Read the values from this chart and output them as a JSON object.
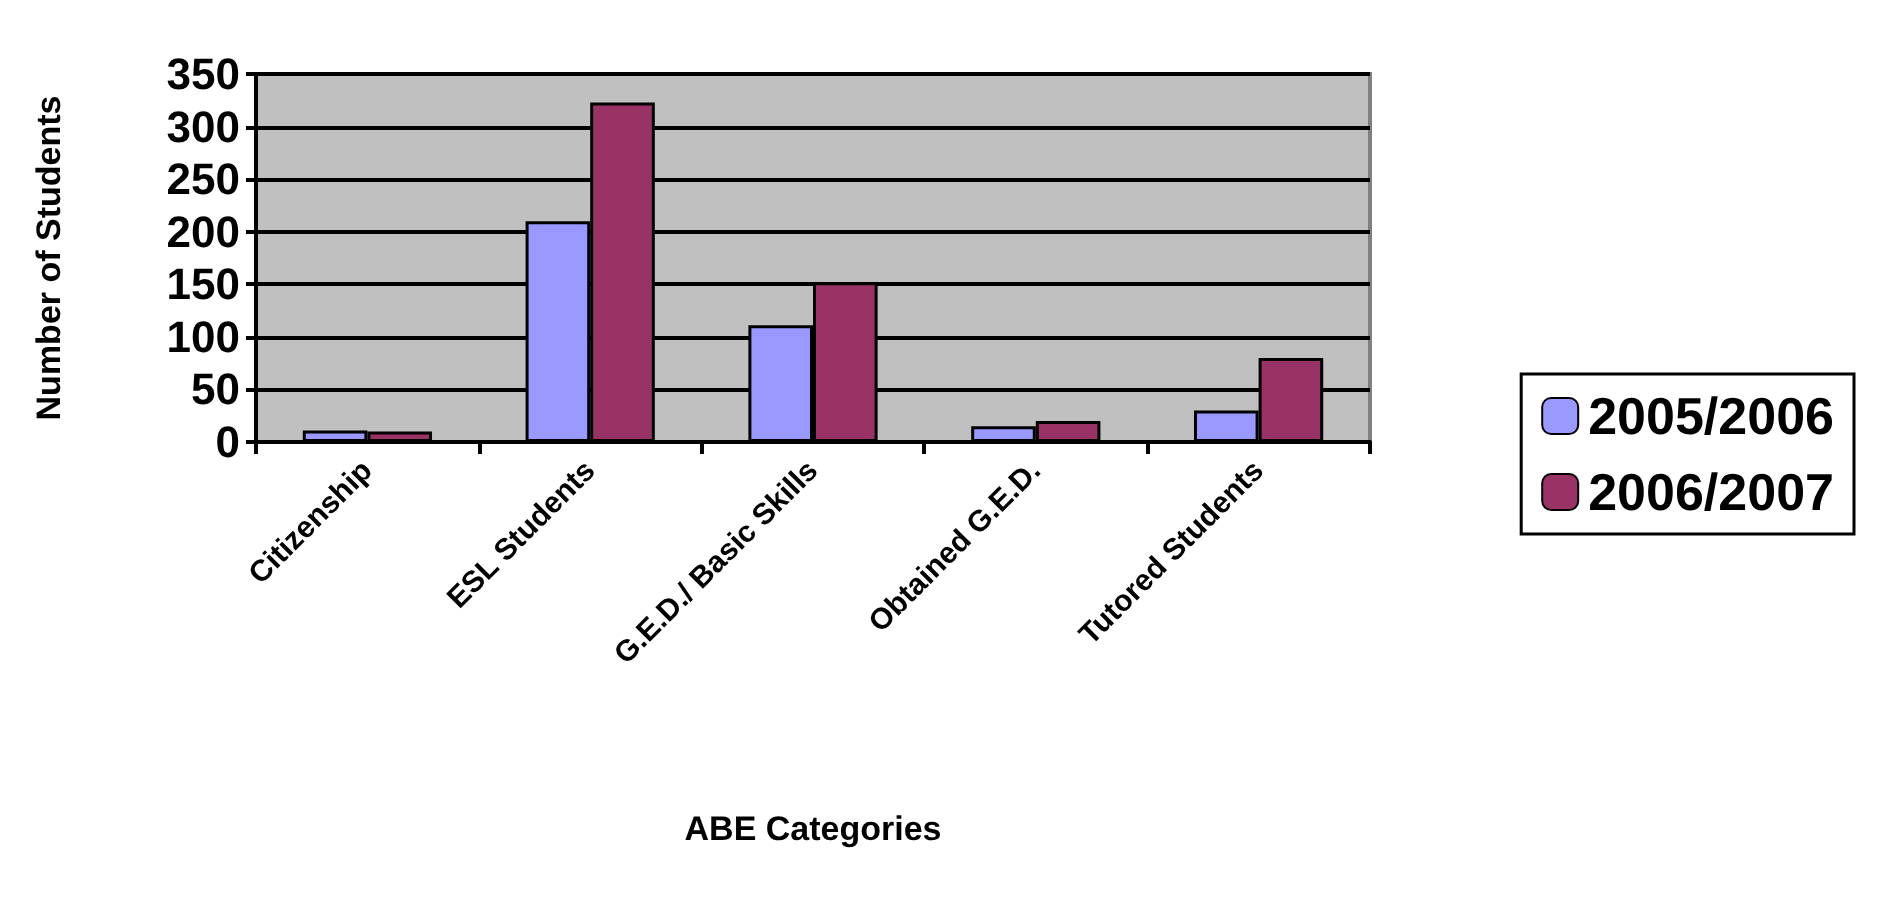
{
  "chart_data": {
    "type": "bar",
    "xlabel": "ABE Categories",
    "ylabel": "Number of Students",
    "categories": [
      "Citizenship",
      "ESL Students",
      "G.E.D./ Basic Skills",
      "Obtained G.E.D.",
      "Tutored Students"
    ],
    "series": [
      {
        "name": "2005/2006",
        "color": "#9999ff",
        "values": [
          11,
          210,
          111,
          15,
          30
        ]
      },
      {
        "name": "2006/2007",
        "color": "#993366",
        "values": [
          10,
          323,
          152,
          20,
          80
        ]
      }
    ],
    "ylim": [
      0,
      350
    ],
    "yticks": [
      0,
      50,
      100,
      150,
      200,
      250,
      300,
      350
    ],
    "grid": "y",
    "legend": "right"
  }
}
